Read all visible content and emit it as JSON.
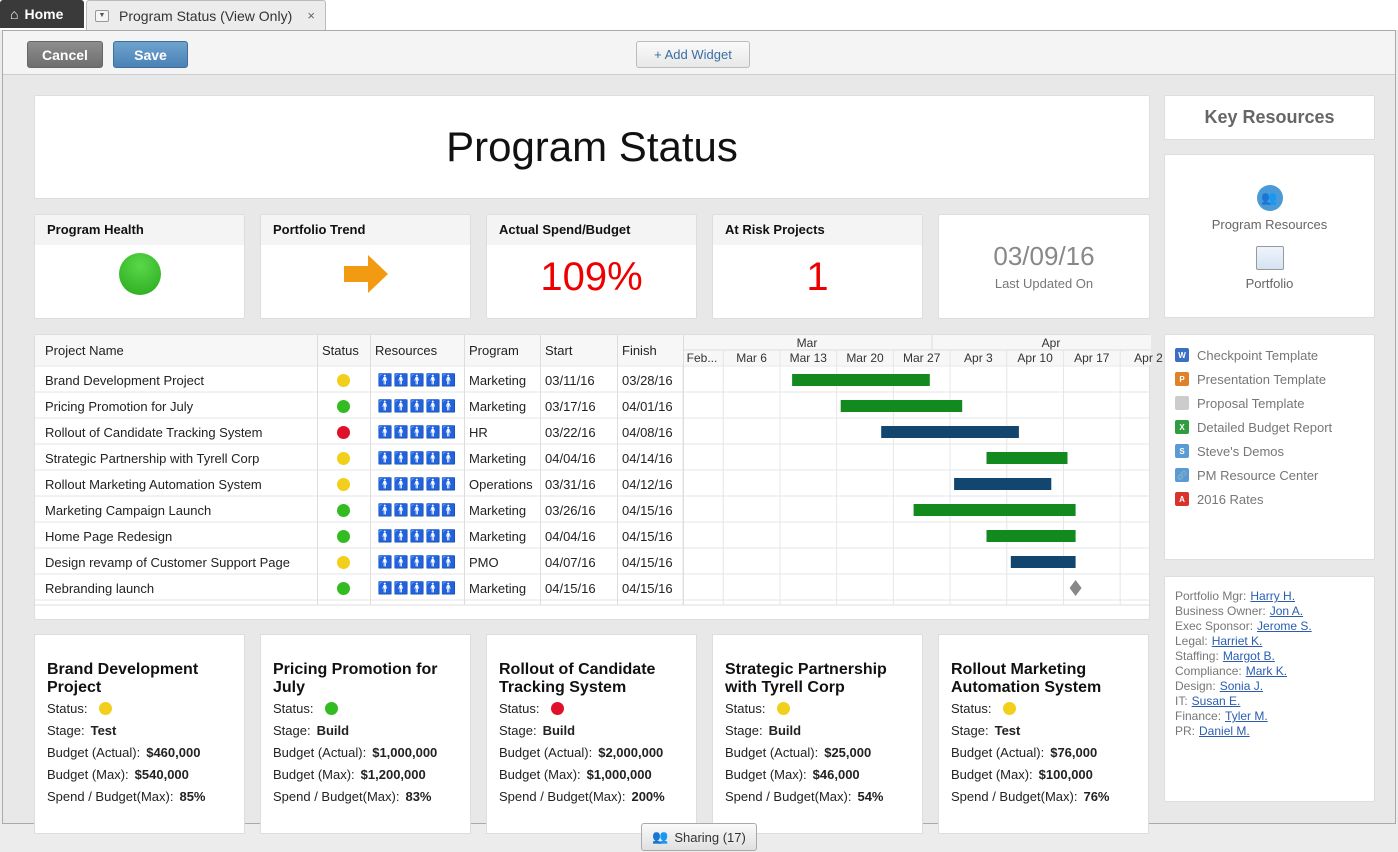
{
  "tabs": {
    "home": "Home",
    "doc": "Program Status (View Only)",
    "close": "×"
  },
  "toolbar": {
    "cancel": "Cancel",
    "save": "Save",
    "add_widget": "+ Add Widget"
  },
  "title": "Program Status",
  "metrics": [
    {
      "label": "Program Health",
      "kind": "dot",
      "color": "#33bb22"
    },
    {
      "label": "Portfolio Trend",
      "kind": "arrow",
      "color": "#f29a12"
    },
    {
      "label": "Actual Spend/Budget",
      "value": "109%"
    },
    {
      "label": "At Risk Projects",
      "value": "1"
    }
  ],
  "last_updated": {
    "date": "03/09/16",
    "label": "Last Updated On"
  },
  "key_resources": {
    "title": "Key Resources",
    "items": [
      "Program Resources",
      "Portfolio"
    ]
  },
  "links": [
    {
      "label": "Checkpoint Template",
      "icon": "word-icon",
      "color": "#3b6fc4",
      "glyph": "W"
    },
    {
      "label": "Presentation Template",
      "icon": "powerpoint-icon",
      "color": "#e0802a",
      "glyph": "P"
    },
    {
      "label": "Proposal Template",
      "icon": "document-icon",
      "color": "#cccccc",
      "glyph": ""
    },
    {
      "label": "Detailed Budget Report",
      "icon": "excel-icon",
      "color": "#2f9d3f",
      "glyph": "X"
    },
    {
      "label": "Steve's Demos",
      "icon": "demo-icon",
      "color": "#5a9bd5",
      "glyph": "S"
    },
    {
      "label": "PM Resource Center",
      "icon": "link-icon",
      "color": "#5a9bd5",
      "glyph": "🔗"
    },
    {
      "label": "2016 Rates",
      "icon": "pdf-icon",
      "color": "#d9342b",
      "glyph": "A"
    }
  ],
  "contacts": [
    {
      "role": "Portfolio Mgr:",
      "name": "Harry H."
    },
    {
      "role": "Business Owner:",
      "name": "Jon A."
    },
    {
      "role": "Exec Sponsor:",
      "name": "Jerome S."
    },
    {
      "role": "Legal:",
      "name": "Harriet K."
    },
    {
      "role": "Staffing:",
      "name": "Margot B."
    },
    {
      "role": "Compliance:",
      "name": "Mark K."
    },
    {
      "role": "Design:",
      "name": "Sonia J."
    },
    {
      "role": "IT:",
      "name": "Susan E."
    },
    {
      "role": "Finance:",
      "name": "Tyler M."
    },
    {
      "role": "PR:",
      "name": "Daniel M."
    }
  ],
  "grid": {
    "headers": [
      "Project Name",
      "Status",
      "Resources",
      "Program",
      "Start",
      "Finish"
    ],
    "months": [
      "Mar",
      "Apr"
    ],
    "weeks": [
      "Feb...",
      "Mar 6",
      "Mar 13",
      "Mar 20",
      "Mar 27",
      "Apr 3",
      "Apr 10",
      "Apr 17",
      "Apr 2"
    ],
    "rows": [
      {
        "name": "Brand Development Project",
        "status": "#f2cf1a",
        "people": 2,
        "program": "Marketing",
        "start": "03/11/16",
        "finish": "03/28/16",
        "bar": "#138a1e",
        "s": 11,
        "e": 28
      },
      {
        "name": "Pricing Promotion for July",
        "status": "#33bb22",
        "people": 3,
        "program": "Marketing",
        "start": "03/17/16",
        "finish": "04/01/16",
        "bar": "#138a1e",
        "s": 17,
        "e": 32
      },
      {
        "name": "Rollout of Candidate Tracking System",
        "status": "#e0102a",
        "people": 0,
        "program": "HR",
        "start": "03/22/16",
        "finish": "04/08/16",
        "bar": "#12466e",
        "s": 22,
        "e": 39
      },
      {
        "name": "Strategic Partnership with Tyrell Corp",
        "status": "#f2cf1a",
        "people": 5,
        "program": "Marketing",
        "start": "04/04/16",
        "finish": "04/14/16",
        "bar": "#138a1e",
        "s": 35,
        "e": 45
      },
      {
        "name": "Rollout Marketing Automation System",
        "status": "#f2cf1a",
        "people": 5,
        "program": "Operations",
        "start": "03/31/16",
        "finish": "04/12/16",
        "bar": "#12466e",
        "s": 31,
        "e": 43
      },
      {
        "name": "Marketing Campaign Launch",
        "status": "#33bb22",
        "people": 4,
        "program": "Marketing",
        "start": "03/26/16",
        "finish": "04/15/16",
        "bar": "#138a1e",
        "s": 26,
        "e": 46
      },
      {
        "name": "Home Page Redesign",
        "status": "#33bb22",
        "people": 5,
        "program": "Marketing",
        "start": "04/04/16",
        "finish": "04/15/16",
        "bar": "#138a1e",
        "s": 35,
        "e": 46
      },
      {
        "name": "Design revamp of Customer Support Page",
        "status": "#f2cf1a",
        "people": 3,
        "program": "PMO",
        "start": "04/07/16",
        "finish": "04/15/16",
        "bar": "#12466e",
        "s": 38,
        "e": 46
      },
      {
        "name": "Rebranding launch",
        "status": "#33bb22",
        "people": 5,
        "program": "Marketing",
        "start": "04/15/16",
        "finish": "04/15/16",
        "bar": "milestone",
        "s": 46,
        "e": 46
      }
    ]
  },
  "project_cards": [
    {
      "title": "Brand Development Project",
      "status": "#f2cf1a",
      "stage": "Test",
      "actual": "$460,000",
      "max": "$540,000",
      "spend": "85%"
    },
    {
      "title": "Pricing Promotion for July",
      "status": "#33bb22",
      "stage": "Build",
      "actual": "$1,000,000",
      "max": "$1,200,000",
      "spend": "83%"
    },
    {
      "title": "Rollout of Candidate Tracking System",
      "status": "#e0102a",
      "stage": "Build",
      "actual": "$2,000,000",
      "max": "$1,000,000",
      "spend": "200%"
    },
    {
      "title": "Strategic Partnership with Tyrell Corp",
      "status": "#f2cf1a",
      "stage": "Build",
      "actual": "$25,000",
      "max": "$46,000",
      "spend": "54%"
    },
    {
      "title": "Rollout Marketing Automation System",
      "status": "#f2cf1a",
      "stage": "Test",
      "actual": "$76,000",
      "max": "$100,000",
      "spend": "76%"
    }
  ],
  "card_labels": {
    "status": "Status:",
    "stage": "Stage:",
    "actual": "Budget (Actual):",
    "max": "Budget (Max):",
    "spend": "Spend / Budget(Max):"
  },
  "sharing": "Sharing (17)"
}
